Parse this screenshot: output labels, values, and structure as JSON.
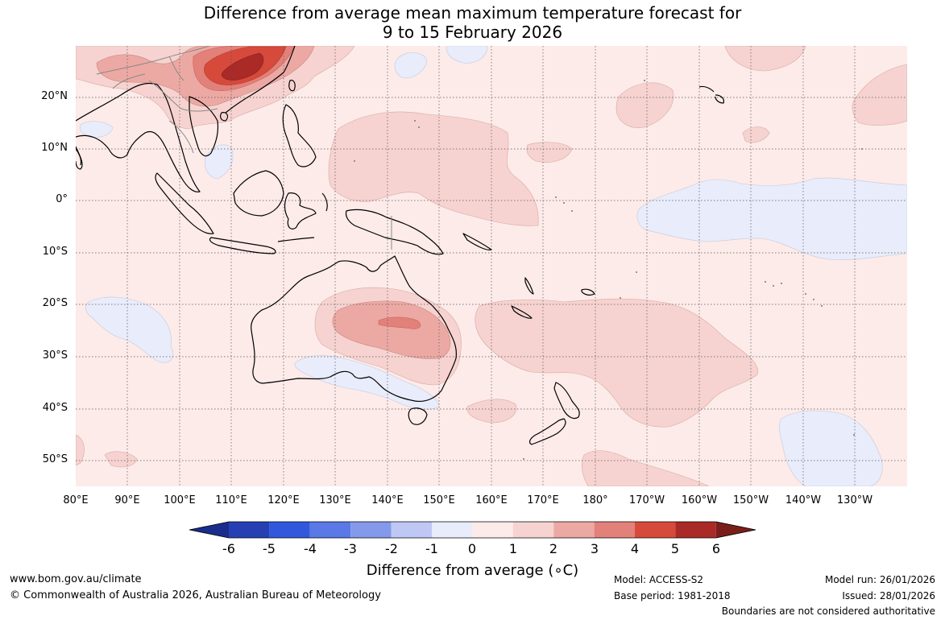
{
  "title": {
    "line1": "Difference from average mean maximum temperature forecast for",
    "line2": "9 to 15 February 2026"
  },
  "latitude_labels": [
    "20°N",
    "10°N",
    "0°",
    "10°S",
    "20°S",
    "30°S",
    "40°S",
    "50°S"
  ],
  "longitude_labels": [
    "80°E",
    "90°E",
    "100°E",
    "110°E",
    "120°E",
    "130°E",
    "140°E",
    "150°E",
    "160°E",
    "170°E",
    "180°",
    "170°W",
    "160°W",
    "150°W",
    "140°W",
    "130°W"
  ],
  "colorbar": {
    "ticks": [
      "-6",
      "-5",
      "-4",
      "-3",
      "-2",
      "-1",
      "0",
      "1",
      "2",
      "3",
      "4",
      "5",
      "6"
    ],
    "colors": [
      "#1a2c8c",
      "#2640b4",
      "#3158dc",
      "#5a78e6",
      "#8499ea",
      "#bfc8f4",
      "#e8ecfb",
      "#fcebe9",
      "#f6d3d0",
      "#eca9a4",
      "#e2817a",
      "#d64a3c",
      "#a92a26",
      "#7a1e1a"
    ],
    "label": "Difference from average (°C)",
    "label_text": "Difference from average (",
    "label_unit": "∘C)"
  },
  "footer": {
    "website": "www.bom.gov.au/climate",
    "copyright": "© Commonwealth of Australia 2026, Australian Bureau of Meteorology",
    "model": "Model: ACCESS-S2",
    "base_period": "Base period: 1981-2018",
    "model_run": "Model run: 26/01/2026",
    "issued": "Issued: 28/01/2026",
    "boundaries": "Boundaries are not considered authoritative"
  },
  "colors": {
    "background_anomaly": "#fcebe9",
    "warm_1_2": "#f6d3d0",
    "warm_2_3": "#eca9a4",
    "warm_3_4": "#e2817a",
    "warm_4_5": "#d64a3c",
    "warm_5_6": "#a92a26",
    "cool_0_1": "#e8ecfb"
  }
}
